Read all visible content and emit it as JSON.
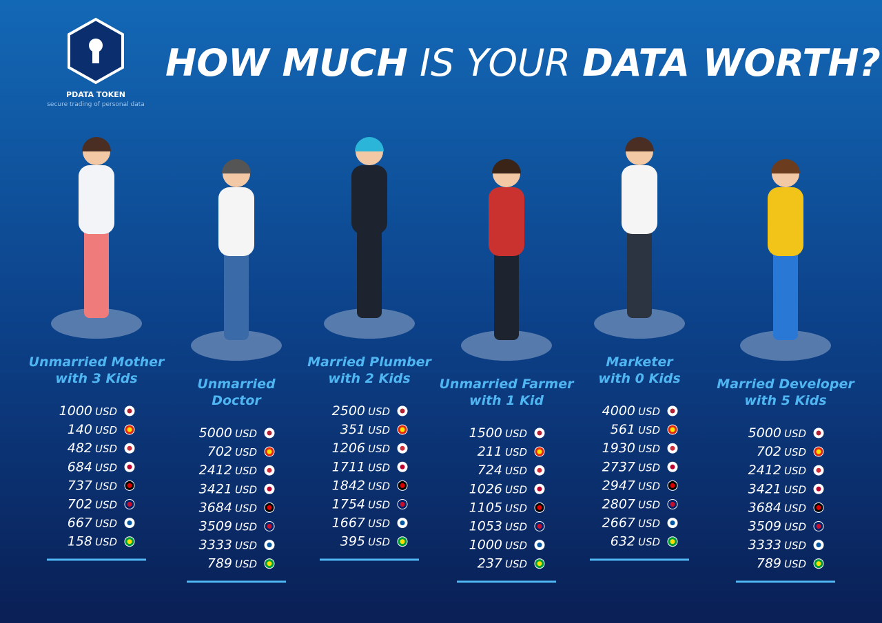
{
  "header": {
    "title_parts": [
      "HOW MUCH",
      "IS YOUR",
      "DATA WORTH?"
    ],
    "brand": "PDATA TOKEN",
    "tagline": "secure trading of personal data"
  },
  "currency": "USD",
  "personas": [
    {
      "title_lines": [
        "Unmarried Mother",
        "with 3 Kids"
      ],
      "amounts": [
        1000,
        140,
        482,
        684,
        737,
        702,
        667,
        158
      ]
    },
    {
      "title_lines": [
        "Unmarried",
        "Doctor"
      ],
      "amounts": [
        5000,
        702,
        2412,
        3421,
        3684,
        3509,
        3333,
        789
      ]
    },
    {
      "title_lines": [
        "Married Plumber",
        "with 2 Kids"
      ],
      "amounts": [
        2500,
        351,
        1206,
        1711,
        1842,
        1754,
        1667,
        395
      ]
    },
    {
      "title_lines": [
        "Unmarried Farmer",
        "with 1 Kid"
      ],
      "amounts": [
        1500,
        211,
        724,
        1026,
        1105,
        1053,
        1000,
        237
      ]
    },
    {
      "title_lines": [
        "Marketer",
        "with 0 Kids"
      ],
      "amounts": [
        4000,
        561,
        1930,
        2737,
        2947,
        2807,
        2667,
        632
      ]
    },
    {
      "title_lines": [
        "Married Developer",
        "with 5 Kids"
      ],
      "amounts": [
        5000,
        702,
        2412,
        3421,
        3684,
        3509,
        3333,
        789
      ]
    }
  ]
}
